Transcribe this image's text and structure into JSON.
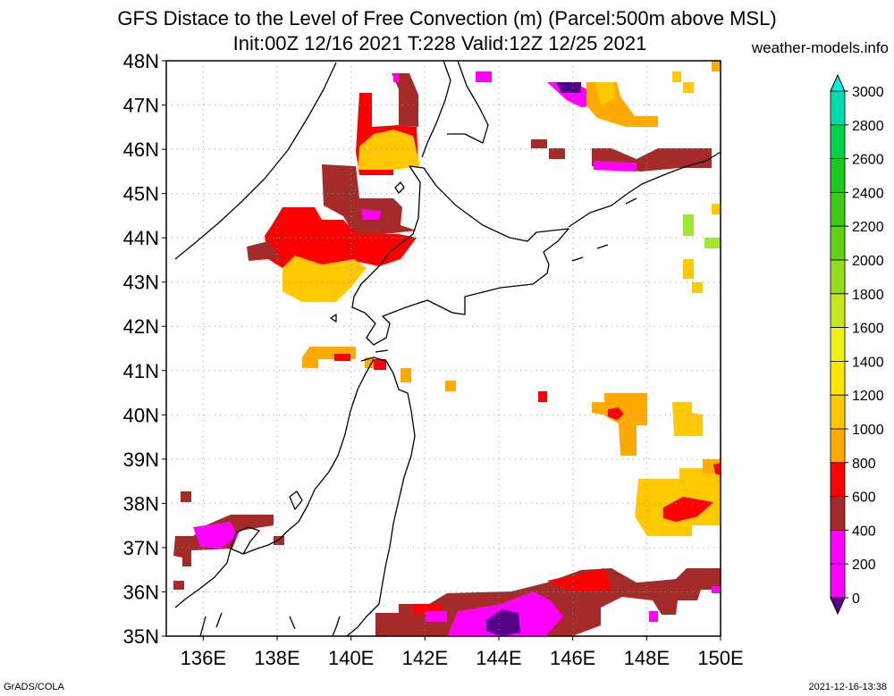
{
  "header": {
    "title_line1": "GFS Distace to the Level of Free Convection (m) (Parcel:500m above MSL)",
    "title_line2": "Init:00Z 12/16 2021 T:228 Valid:12Z 12/25 2021",
    "site": "weather-models.info"
  },
  "map": {
    "lat_labels": [
      "48N",
      "47N",
      "46N",
      "45N",
      "44N",
      "43N",
      "42N",
      "41N",
      "40N",
      "39N",
      "38N",
      "37N",
      "36N",
      "35N"
    ],
    "lon_labels": [
      "136E",
      "138E",
      "140E",
      "142E",
      "144E",
      "146E",
      "148E",
      "150E"
    ],
    "lon_range": [
      135,
      150
    ],
    "lat_range": [
      35,
      48
    ],
    "gridlines": "dotted",
    "colors": {
      "darkred": "#a52a2a",
      "red": "#ff0000",
      "orange": "#ffaa00",
      "gold": "#ffc800",
      "magenta": "#ff00ff",
      "purple": "#550088",
      "lime": "#a0e632",
      "coast": "#000000"
    }
  },
  "colorbar": {
    "labels": [
      "3000",
      "2800",
      "2600",
      "2400",
      "2200",
      "2000",
      "1800",
      "1600",
      "1400",
      "1200",
      "1000",
      "800",
      "600",
      "400",
      "200",
      "0"
    ],
    "colors": [
      "#00f0e0",
      "#00dcaa",
      "#00d24a",
      "#1ec81e",
      "#3cc814",
      "#64d214",
      "#96dc1e",
      "#c8e61e",
      "#f0f014",
      "#ffe600",
      "#ffc800",
      "#ffaa00",
      "#ff0000",
      "#a52a2a",
      "#ff00ff",
      "#550088"
    ]
  },
  "footer": {
    "left": "GrADS/COLA",
    "right": "2021-12-16-13:38"
  }
}
